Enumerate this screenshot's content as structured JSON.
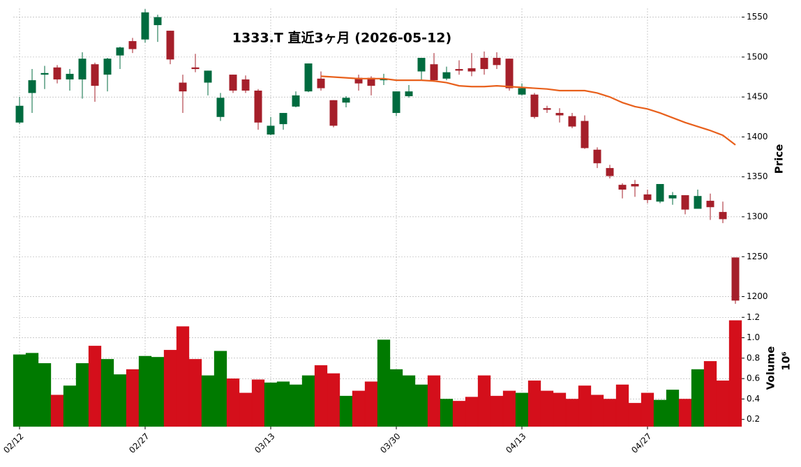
{
  "chart_data": {
    "type": "candlestick",
    "title": "1333.T 直近3ヶ月 (2026-05-12)",
    "ylabel": "Price",
    "categories": [
      "02/12",
      null,
      null,
      null,
      null,
      null,
      null,
      null,
      null,
      null,
      "02/27",
      null,
      null,
      null,
      null,
      null,
      null,
      null,
      null,
      null,
      "03/13",
      null,
      null,
      null,
      null,
      null,
      null,
      null,
      null,
      null,
      "03/30",
      null,
      null,
      null,
      null,
      null,
      null,
      null,
      null,
      null,
      "04/13",
      null,
      null,
      null,
      null,
      null,
      null,
      null,
      null,
      null,
      "04/27",
      null,
      null,
      null,
      null,
      null,
      null,
      null
    ],
    "open": [
      1418,
      1455,
      1478,
      1487,
      1472,
      1472,
      1491,
      1478,
      1502,
      1520,
      1522,
      1540,
      1533,
      1468,
      1487,
      1468,
      1425,
      1478,
      1472,
      1458,
      1403,
      1416,
      1438,
      1457,
      1473,
      1446,
      1443,
      1474,
      1474,
      1471,
      1430,
      1451,
      1482,
      1491,
      1473,
      1485,
      1486,
      1499,
      1499,
      1498,
      1453,
      1453,
      1436,
      1430,
      1426,
      1420,
      1384,
      1361,
      1340,
      1341,
      1328,
      1319,
      1323,
      1327,
      1310,
      1320,
      1306,
      1249
    ],
    "high": [
      1450,
      1485,
      1489,
      1490,
      1485,
      1506,
      1493,
      1499,
      1513,
      1524,
      1560,
      1553,
      1533,
      1478,
      1504,
      1483,
      1455,
      1478,
      1477,
      1460,
      1425,
      1430,
      1457,
      1492,
      1482,
      1446,
      1451,
      1478,
      1476,
      1479,
      1457,
      1465,
      1499,
      1505,
      1488,
      1496,
      1505,
      1507,
      1506,
      1498,
      1467,
      1455,
      1439,
      1436,
      1430,
      1427,
      1387,
      1365,
      1342,
      1346,
      1334,
      1341,
      1331,
      1327,
      1334,
      1329,
      1319,
      1249
    ],
    "low": [
      1416,
      1430,
      1460,
      1467,
      1458,
      1448,
      1444,
      1457,
      1485,
      1505,
      1518,
      1519,
      1491,
      1430,
      1481,
      1452,
      1420,
      1455,
      1455,
      1409,
      1402,
      1409,
      1437,
      1456,
      1458,
      1412,
      1437,
      1458,
      1452,
      1465,
      1426,
      1449,
      1471,
      1469,
      1471,
      1478,
      1476,
      1478,
      1485,
      1458,
      1452,
      1423,
      1430,
      1418,
      1411,
      1385,
      1361,
      1348,
      1323,
      1325,
      1317,
      1317,
      1315,
      1303,
      1310,
      1296,
      1292,
      1191
    ],
    "close": [
      1439,
      1471,
      1480,
      1472,
      1479,
      1498,
      1464,
      1498,
      1512,
      1510,
      1556,
      1550,
      1497,
      1457,
      1485,
      1483,
      1449,
      1458,
      1458,
      1418,
      1414,
      1430,
      1452,
      1492,
      1461,
      1414,
      1449,
      1467,
      1464,
      1473,
      1457,
      1457,
      1499,
      1471,
      1481,
      1483,
      1482,
      1485,
      1490,
      1461,
      1461,
      1425,
      1434,
      1427,
      1413,
      1386,
      1367,
      1351,
      1334,
      1338,
      1321,
      1341,
      1327,
      1309,
      1326,
      1312,
      1297,
      1195
    ],
    "up_color": "#006b3f",
    "down_color": "#a51f2a",
    "ma": {
      "color": "#e8601c",
      "values": [
        null,
        null,
        null,
        null,
        null,
        null,
        null,
        null,
        null,
        null,
        null,
        null,
        null,
        null,
        null,
        null,
        null,
        null,
        null,
        null,
        null,
        null,
        null,
        null,
        1476,
        1475,
        1474,
        1473,
        1473,
        1473,
        1471,
        1471,
        1471,
        1470,
        1468,
        1464,
        1463,
        1463,
        1464,
        1463,
        1462,
        1461,
        1460,
        1458,
        1458,
        1458,
        1455,
        1450,
        1443,
        1438,
        1435,
        1430,
        1424,
        1418,
        1413,
        1408,
        1402,
        1390
      ]
    },
    "ylim": [
      1183,
      1561
    ],
    "yticks": [
      1200,
      1250,
      1300,
      1350,
      1400,
      1450,
      1500,
      1550
    ],
    "grid": true,
    "volume": {
      "ylabel": "Volume",
      "offset_label": "10⁶",
      "values": [
        0.835,
        0.85,
        0.75,
        0.44,
        0.53,
        0.75,
        0.92,
        0.79,
        0.64,
        0.69,
        0.82,
        0.81,
        0.88,
        1.11,
        0.79,
        0.63,
        0.87,
        0.6,
        0.46,
        0.59,
        0.56,
        0.57,
        0.54,
        0.63,
        0.73,
        0.65,
        0.43,
        0.48,
        0.57,
        0.98,
        0.69,
        0.63,
        0.54,
        0.63,
        0.4,
        0.38,
        0.42,
        0.63,
        0.43,
        0.48,
        0.46,
        0.58,
        0.48,
        0.46,
        0.4,
        0.53,
        0.44,
        0.4,
        0.54,
        0.36,
        0.46,
        0.39,
        0.49,
        0.4,
        0.69,
        0.77,
        0.58,
        1.17
      ],
      "up_color": "#007a00",
      "down_color": "#d40f1b",
      "ylim": [
        0.13,
        1.27
      ],
      "yticks": [
        0.2,
        0.4,
        0.6,
        0.8,
        {
          "value": 1,
          "label": "1.0"
        },
        1.2
      ]
    }
  }
}
